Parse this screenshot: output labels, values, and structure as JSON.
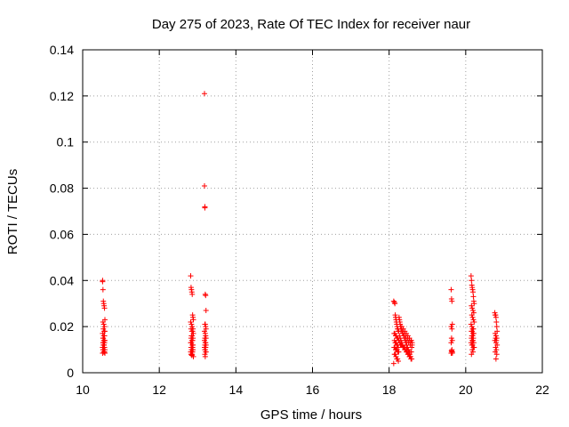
{
  "chart_data": {
    "type": "scatter",
    "title": "Day 275 of 2023, Rate Of TEC Index for receiver naur",
    "xlabel": "GPS time / hours",
    "ylabel": "ROTI / TECUs",
    "xlim": [
      10,
      22
    ],
    "ylim": [
      0,
      0.14
    ],
    "x_ticks": [
      "10",
      "12",
      "14",
      "16",
      "18",
      "20",
      "22"
    ],
    "y_ticks": [
      "0",
      "0.02",
      "0.04",
      "0.06",
      "0.08",
      "0.1",
      "0.12",
      "0.14"
    ],
    "grid": true,
    "marker": "plus",
    "color": "#ff0000",
    "series": [
      {
        "x": [
          10.52,
          10.52,
          10.53,
          10.54,
          10.55,
          10.56,
          10.57,
          10.58,
          10.53,
          10.55,
          10.57,
          10.54,
          10.56,
          10.58,
          10.52,
          10.55,
          10.57,
          10.54,
          10.53,
          10.56,
          10.58,
          10.55,
          10.54,
          10.57,
          10.53,
          10.56,
          10.55,
          10.54,
          10.57,
          10.52,
          10.56,
          10.55,
          10.58,
          10.53,
          10.54,
          10.57,
          10.56,
          10.55,
          10.52,
          10.58,
          12.82,
          12.83,
          12.84,
          12.85,
          12.86,
          12.87,
          12.88,
          12.89,
          12.82,
          12.84,
          12.86,
          12.88,
          12.83,
          12.85,
          12.87,
          12.89,
          12.84,
          12.86,
          12.88,
          12.83,
          12.85,
          12.87,
          12.82,
          12.84,
          12.86,
          12.88,
          12.85,
          12.87,
          12.83,
          12.86,
          12.84,
          12.88,
          12.82,
          12.85,
          12.87,
          12.83,
          12.86,
          12.84,
          12.89,
          12.85,
          13.18,
          13.18,
          13.19,
          13.19,
          13.2,
          13.21,
          13.22,
          13.19,
          13.2,
          13.21,
          13.22,
          13.18,
          13.2,
          13.21,
          13.19,
          13.22,
          13.18,
          13.2,
          13.21,
          13.19,
          13.22,
          13.2,
          13.18,
          13.21,
          13.19,
          13.2,
          13.22,
          13.21,
          13.19,
          13.2,
          18.12,
          18.14,
          18.15,
          18.16,
          18.17,
          18.18,
          18.19,
          18.2,
          18.21,
          18.22,
          18.23,
          18.24,
          18.25,
          18.13,
          18.15,
          18.17,
          18.19,
          18.21,
          18.23,
          18.25,
          18.14,
          18.16,
          18.18,
          18.2,
          18.22,
          18.24,
          18.13,
          18.15,
          18.17,
          18.19,
          18.21,
          18.23,
          18.25,
          18.14,
          18.16,
          18.18,
          18.2,
          18.22,
          18.24,
          18.12,
          18.26,
          18.27,
          18.28,
          18.29,
          18.3,
          18.32,
          18.34,
          18.36,
          18.38,
          18.4,
          18.42,
          18.44,
          18.46,
          18.48,
          18.5,
          18.52,
          18.54,
          18.56,
          18.58,
          18.6,
          18.27,
          18.29,
          18.31,
          18.33,
          18.35,
          18.37,
          18.39,
          18.41,
          18.43,
          18.45,
          18.47,
          18.49,
          18.51,
          18.53,
          18.55,
          18.57,
          18.59,
          18.28,
          18.32,
          18.36,
          18.4,
          18.44,
          18.48,
          18.52,
          18.56,
          18.3,
          18.34,
          18.38,
          18.42,
          18.46,
          18.5,
          18.54,
          18.58,
          18.31,
          18.35,
          18.39,
          18.43,
          18.47,
          18.51,
          18.55,
          18.59,
          18.33,
          18.37,
          18.41,
          18.45,
          18.49,
          18.53,
          18.57,
          18.6,
          18.3,
          19.62,
          19.63,
          19.64,
          19.65,
          19.62,
          19.64,
          19.63,
          19.65,
          19.62,
          19.64,
          19.63,
          19.65,
          19.62,
          19.64,
          19.63,
          19.65,
          20.14,
          20.15,
          20.16,
          20.17,
          20.18,
          20.19,
          20.2,
          20.21,
          20.22,
          20.15,
          20.17,
          20.19,
          20.21,
          20.16,
          20.18,
          20.2,
          20.22,
          20.14,
          20.16,
          20.18,
          20.2,
          20.15,
          20.17,
          20.19,
          20.21,
          20.16,
          20.18,
          20.2,
          20.15,
          20.17,
          20.19,
          20.21,
          20.14,
          20.16,
          20.18,
          20.2,
          20.22,
          20.17,
          20.19,
          20.15,
          20.76,
          20.77,
          20.78,
          20.79,
          20.8,
          20.81,
          20.82,
          20.77,
          20.79,
          20.81,
          20.78,
          20.8,
          20.76,
          20.79,
          20.82,
          20.78,
          20.8,
          20.77,
          20.81,
          20.79
        ],
        "y": [
          0.04,
          0.0395,
          0.036,
          0.031,
          0.03,
          0.029,
          0.028,
          0.023,
          0.022,
          0.021,
          0.02,
          0.019,
          0.018,
          0.018,
          0.017,
          0.016,
          0.016,
          0.015,
          0.015,
          0.014,
          0.014,
          0.014,
          0.013,
          0.013,
          0.013,
          0.012,
          0.012,
          0.012,
          0.011,
          0.011,
          0.011,
          0.011,
          0.01,
          0.01,
          0.01,
          0.009,
          0.009,
          0.009,
          0.0085,
          0.0085,
          0.042,
          0.037,
          0.036,
          0.035,
          0.034,
          0.025,
          0.024,
          0.023,
          0.022,
          0.021,
          0.02,
          0.019,
          0.019,
          0.018,
          0.018,
          0.017,
          0.016,
          0.016,
          0.015,
          0.015,
          0.014,
          0.014,
          0.013,
          0.013,
          0.012,
          0.012,
          0.011,
          0.011,
          0.011,
          0.01,
          0.01,
          0.01,
          0.009,
          0.009,
          0.009,
          0.008,
          0.008,
          0.008,
          0.007,
          0.0075,
          0.121,
          0.081,
          0.072,
          0.0715,
          0.034,
          0.0335,
          0.027,
          0.021,
          0.021,
          0.02,
          0.019,
          0.018,
          0.017,
          0.016,
          0.015,
          0.015,
          0.014,
          0.013,
          0.013,
          0.012,
          0.012,
          0.011,
          0.011,
          0.011,
          0.01,
          0.01,
          0.009,
          0.009,
          0.008,
          0.007,
          0.031,
          0.0305,
          0.03,
          0.025,
          0.024,
          0.023,
          0.022,
          0.021,
          0.02,
          0.019,
          0.019,
          0.018,
          0.018,
          0.017,
          0.017,
          0.016,
          0.016,
          0.015,
          0.015,
          0.014,
          0.014,
          0.013,
          0.013,
          0.012,
          0.012,
          0.011,
          0.011,
          0.011,
          0.01,
          0.01,
          0.01,
          0.009,
          0.009,
          0.008,
          0.008,
          0.007,
          0.006,
          0.006,
          0.005,
          0.004,
          0.024,
          0.023,
          0.022,
          0.021,
          0.02,
          0.019,
          0.018,
          0.017,
          0.016,
          0.015,
          0.014,
          0.013,
          0.012,
          0.011,
          0.01,
          0.009,
          0.008,
          0.007,
          0.014,
          0.012,
          0.016,
          0.015,
          0.014,
          0.013,
          0.012,
          0.011,
          0.011,
          0.01,
          0.01,
          0.009,
          0.009,
          0.008,
          0.008,
          0.007,
          0.007,
          0.006,
          0.006,
          0.013,
          0.012,
          0.011,
          0.017,
          0.016,
          0.015,
          0.014,
          0.013,
          0.012,
          0.012,
          0.011,
          0.011,
          0.01,
          0.01,
          0.009,
          0.009,
          0.018,
          0.017,
          0.016,
          0.015,
          0.014,
          0.013,
          0.012,
          0.011,
          0.02,
          0.019,
          0.018,
          0.017,
          0.016,
          0.015,
          0.014,
          0.013,
          0.012,
          0.036,
          0.032,
          0.031,
          0.021,
          0.02,
          0.019,
          0.015,
          0.014,
          0.013,
          0.01,
          0.0095,
          0.009,
          0.0085,
          0.009,
          0.0095,
          0.0085,
          0.042,
          0.04,
          0.038,
          0.037,
          0.036,
          0.035,
          0.033,
          0.031,
          0.03,
          0.029,
          0.028,
          0.027,
          0.026,
          0.025,
          0.024,
          0.023,
          0.022,
          0.021,
          0.02,
          0.019,
          0.019,
          0.018,
          0.018,
          0.017,
          0.017,
          0.016,
          0.016,
          0.015,
          0.015,
          0.014,
          0.014,
          0.013,
          0.013,
          0.012,
          0.012,
          0.011,
          0.011,
          0.01,
          0.009,
          0.008,
          0.026,
          0.025,
          0.025,
          0.024,
          0.022,
          0.02,
          0.018,
          0.017,
          0.016,
          0.015,
          0.015,
          0.014,
          0.014,
          0.013,
          0.012,
          0.011,
          0.01,
          0.009,
          0.008,
          0.006
        ]
      }
    ]
  }
}
